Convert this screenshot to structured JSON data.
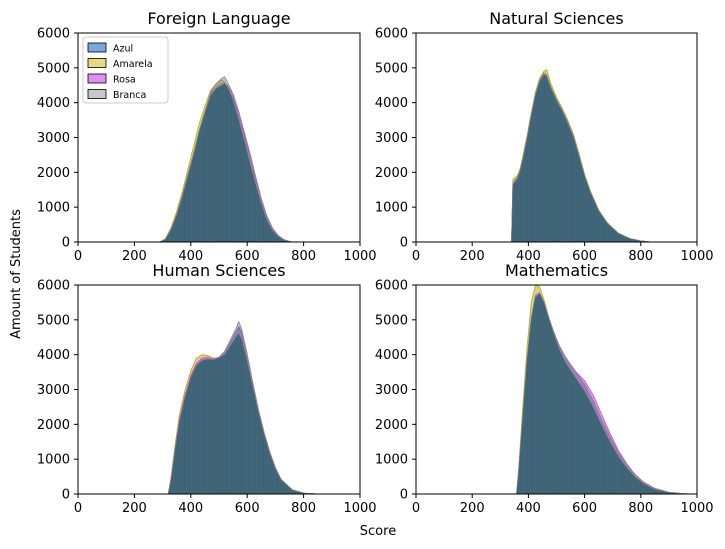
{
  "figure": {
    "xlabel": "Score",
    "ylabel": "Amount of Students"
  },
  "legend": {
    "placement": "top-left of first panel",
    "items": [
      {
        "name": "Azul",
        "color": "#7aa7dc"
      },
      {
        "name": "Amarela",
        "color": "#e3d97d"
      },
      {
        "name": "Rosa",
        "color": "#e08ef2"
      },
      {
        "name": "Branca",
        "color": "#c8c8c8"
      }
    ]
  },
  "colors": {
    "overlap_fill": "#3d6274",
    "azul_edge": "#2c55d8",
    "amarela_edge": "#b3ad22",
    "rosa_edge": "#c64ad8",
    "branca_edge": "#8a8a8a"
  },
  "chart_data": [
    {
      "type": "area",
      "title": "Foreign Language",
      "xlim": [
        0,
        1000
      ],
      "ylim": [
        0,
        6000
      ],
      "xticks": [
        0,
        200,
        400,
        600,
        800,
        1000
      ],
      "yticks": [
        0,
        1000,
        2000,
        3000,
        4000,
        5000,
        6000
      ],
      "legend": true,
      "x": [
        290,
        310,
        330,
        350,
        370,
        390,
        410,
        430,
        450,
        470,
        490,
        510,
        520,
        530,
        550,
        570,
        590,
        610,
        630,
        650,
        670,
        690,
        710,
        730,
        750,
        760
      ],
      "series": [
        {
          "name": "Azul",
          "values": [
            0,
            80,
            380,
            800,
            1350,
            1950,
            2550,
            3200,
            3750,
            4250,
            4450,
            4550,
            4580,
            4450,
            4150,
            3650,
            3050,
            2450,
            1800,
            1200,
            700,
            380,
            180,
            60,
            15,
            0
          ]
        },
        {
          "name": "Amarela",
          "values": [
            0,
            100,
            420,
            880,
            1450,
            2100,
            2750,
            3400,
            3900,
            4350,
            4550,
            4650,
            4600,
            4450,
            4050,
            3500,
            2900,
            2250,
            1650,
            1080,
            620,
            320,
            150,
            50,
            10,
            0
          ]
        },
        {
          "name": "Rosa",
          "values": [
            0,
            70,
            350,
            760,
            1300,
            1900,
            2500,
            3150,
            3700,
            4200,
            4400,
            4500,
            4550,
            4500,
            4250,
            3750,
            3150,
            2550,
            1880,
            1250,
            740,
            400,
            190,
            70,
            20,
            0
          ]
        },
        {
          "name": "Branca",
          "values": [
            0,
            70,
            340,
            750,
            1280,
            1880,
            2480,
            3150,
            3700,
            4300,
            4550,
            4700,
            4750,
            4600,
            4250,
            3700,
            3100,
            2500,
            1850,
            1230,
            720,
            390,
            180,
            60,
            15,
            0
          ]
        }
      ]
    },
    {
      "type": "area",
      "title": "Natural Sciences",
      "xlim": [
        0,
        1000
      ],
      "ylim": [
        0,
        6000
      ],
      "xticks": [
        0,
        200,
        400,
        600,
        800,
        1000
      ],
      "yticks": [
        0,
        1000,
        2000,
        3000,
        4000,
        5000,
        6000
      ],
      "legend": false,
      "x": [
        340,
        345,
        360,
        370,
        380,
        395,
        410,
        425,
        440,
        455,
        465,
        480,
        500,
        520,
        540,
        560,
        580,
        600,
        620,
        650,
        680,
        720,
        760,
        800,
        830,
        850
      ],
      "series": [
        {
          "name": "Azul",
          "values": [
            0,
            1700,
            1850,
            2050,
            2400,
            3000,
            3650,
            4250,
            4650,
            4850,
            4800,
            4450,
            4100,
            3800,
            3450,
            3050,
            2500,
            1900,
            1450,
            900,
            550,
            250,
            100,
            30,
            8,
            0
          ]
        },
        {
          "name": "Amarela",
          "values": [
            0,
            1800,
            1900,
            2100,
            2450,
            3050,
            3700,
            4300,
            4700,
            4900,
            4950,
            4550,
            4150,
            3850,
            3500,
            3100,
            2550,
            1950,
            1480,
            920,
            560,
            255,
            100,
            30,
            8,
            0
          ]
        },
        {
          "name": "Rosa",
          "values": [
            0,
            1650,
            1800,
            2000,
            2350,
            2950,
            3600,
            4200,
            4600,
            4800,
            4750,
            4400,
            4050,
            3750,
            3400,
            3000,
            2450,
            1880,
            1430,
            890,
            540,
            245,
            95,
            28,
            7,
            0
          ]
        },
        {
          "name": "Branca",
          "values": [
            0,
            1700,
            1850,
            2050,
            2400,
            3000,
            3650,
            4250,
            4650,
            4850,
            4800,
            4450,
            4100,
            3800,
            3450,
            3050,
            2500,
            1900,
            1450,
            900,
            550,
            250,
            100,
            30,
            8,
            0
          ]
        }
      ]
    },
    {
      "type": "area",
      "title": "Human Sciences",
      "xlim": [
        0,
        1000
      ],
      "ylim": [
        0,
        6000
      ],
      "xticks": [
        0,
        200,
        400,
        600,
        800,
        1000
      ],
      "yticks": [
        0,
        1000,
        2000,
        3000,
        4000,
        5000,
        6000
      ],
      "legend": false,
      "x": [
        320,
        330,
        345,
        360,
        380,
        400,
        420,
        440,
        460,
        480,
        500,
        520,
        540,
        560,
        570,
        580,
        600,
        620,
        640,
        660,
        680,
        700,
        720,
        760,
        800,
        850
      ],
      "series": [
        {
          "name": "Azul",
          "values": [
            0,
            400,
            1300,
            2100,
            2800,
            3350,
            3700,
            3850,
            3880,
            3850,
            3900,
            4050,
            4350,
            4650,
            4800,
            4650,
            3950,
            3150,
            2400,
            1750,
            1200,
            750,
            420,
            120,
            25,
            0
          ]
        },
        {
          "name": "Amarela",
          "values": [
            0,
            500,
            1450,
            2300,
            3000,
            3550,
            3900,
            4000,
            3980,
            3900,
            3920,
            4000,
            4250,
            4500,
            4600,
            4450,
            3800,
            3050,
            2330,
            1700,
            1160,
            720,
            400,
            110,
            22,
            0
          ]
        },
        {
          "name": "Rosa",
          "values": [
            0,
            420,
            1350,
            2150,
            2850,
            3400,
            3750,
            3900,
            3920,
            3880,
            3910,
            4050,
            4320,
            4620,
            4750,
            4620,
            3930,
            3130,
            2390,
            1740,
            1190,
            745,
            415,
            118,
            24,
            0
          ]
        },
        {
          "name": "Branca",
          "values": [
            0,
            380,
            1280,
            2080,
            2780,
            3330,
            3680,
            3830,
            3870,
            3860,
            3930,
            4100,
            4420,
            4750,
            4950,
            4750,
            4020,
            3200,
            2430,
            1770,
            1210,
            760,
            425,
            122,
            26,
            0
          ]
        }
      ]
    },
    {
      "type": "area",
      "title": "Mathematics",
      "xlim": [
        0,
        1000
      ],
      "ylim": [
        0,
        6000
      ],
      "xticks": [
        0,
        200,
        400,
        600,
        800,
        1000
      ],
      "yticks": [
        0,
        1000,
        2000,
        3000,
        4000,
        5000,
        6000
      ],
      "legend": false,
      "x": [
        358,
        365,
        380,
        395,
        410,
        425,
        440,
        455,
        470,
        490,
        510,
        530,
        550,
        570,
        600,
        630,
        660,
        690,
        720,
        750,
        780,
        810,
        850,
        900,
        950,
        980
      ],
      "series": [
        {
          "name": "Azul",
          "values": [
            0,
            600,
            2200,
            3800,
            5000,
            5650,
            5750,
            5500,
            5100,
            4650,
            4250,
            3950,
            3700,
            3480,
            3150,
            2700,
            2150,
            1650,
            1200,
            850,
            550,
            340,
            160,
            50,
            10,
            0
          ]
        },
        {
          "name": "Amarela",
          "values": [
            0,
            700,
            2500,
            4200,
            5500,
            6000,
            5950,
            5600,
            5150,
            4600,
            4150,
            3800,
            3550,
            3300,
            2950,
            2500,
            1980,
            1500,
            1080,
            750,
            480,
            290,
            130,
            40,
            8,
            0
          ]
        },
        {
          "name": "Rosa",
          "values": [
            0,
            620,
            2250,
            3850,
            5050,
            5700,
            5780,
            5520,
            5120,
            4660,
            4260,
            3960,
            3720,
            3500,
            3250,
            2850,
            2300,
            1750,
            1250,
            870,
            560,
            340,
            155,
            48,
            10,
            0
          ]
        },
        {
          "name": "Branca",
          "values": [
            0,
            600,
            2200,
            3800,
            5000,
            5650,
            5750,
            5500,
            5100,
            4650,
            4250,
            3950,
            3700,
            3480,
            3150,
            2700,
            2150,
            1650,
            1200,
            850,
            550,
            340,
            160,
            50,
            10,
            0
          ]
        }
      ]
    }
  ]
}
